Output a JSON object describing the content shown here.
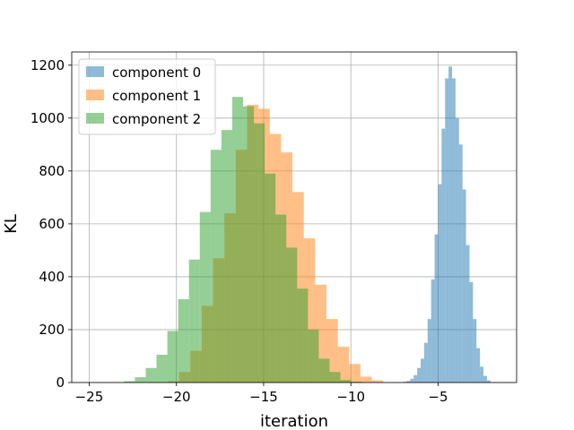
{
  "chart_data": {
    "type": "histogram",
    "title": "",
    "xlabel": "iteration",
    "ylabel": "KL",
    "xlim": [
      -26,
      -0.5
    ],
    "ylim": [
      0,
      1250
    ],
    "xticks": [
      -25,
      -20,
      -15,
      -10,
      -5
    ],
    "xtick_labels": [
      "−25",
      "−20",
      "−15",
      "−10",
      "−5"
    ],
    "yticks": [
      0,
      200,
      400,
      600,
      800,
      1000,
      1200
    ],
    "ytick_labels": [
      "0",
      "200",
      "400",
      "600",
      "800",
      "1000",
      "1200"
    ],
    "grid": true,
    "legend_position": "top-left",
    "series": [
      {
        "name": "component 0",
        "color": "#1f77b4",
        "alpha": 0.5,
        "bin_start": -7.0,
        "bin_width": 0.2,
        "counts": [
          3,
          6,
          14,
          28,
          55,
          90,
          150,
          240,
          390,
          560,
          750,
          960,
          1150,
          1195,
          1150,
          1000,
          900,
          730,
          520,
          380,
          240,
          130,
          60,
          25,
          8
        ]
      },
      {
        "name": "component 1",
        "color": "#ff7f0e",
        "alpha": 0.5,
        "bin_start": -20.5,
        "bin_width": 0.65,
        "counts": [
          5,
          40,
          120,
          290,
          470,
          640,
          880,
          1050,
          1035,
          940,
          870,
          720,
          545,
          370,
          240,
          135,
          70,
          22,
          8
        ]
      },
      {
        "name": "component 2",
        "color": "#2ca02c",
        "alpha": 0.5,
        "bin_start": -23.0,
        "bin_width": 0.62,
        "counts": [
          5,
          20,
          55,
          105,
          195,
          315,
          465,
          645,
          880,
          955,
          1080,
          1045,
          980,
          790,
          635,
          510,
          355,
          200,
          90,
          40,
          10,
          3
        ]
      }
    ]
  }
}
